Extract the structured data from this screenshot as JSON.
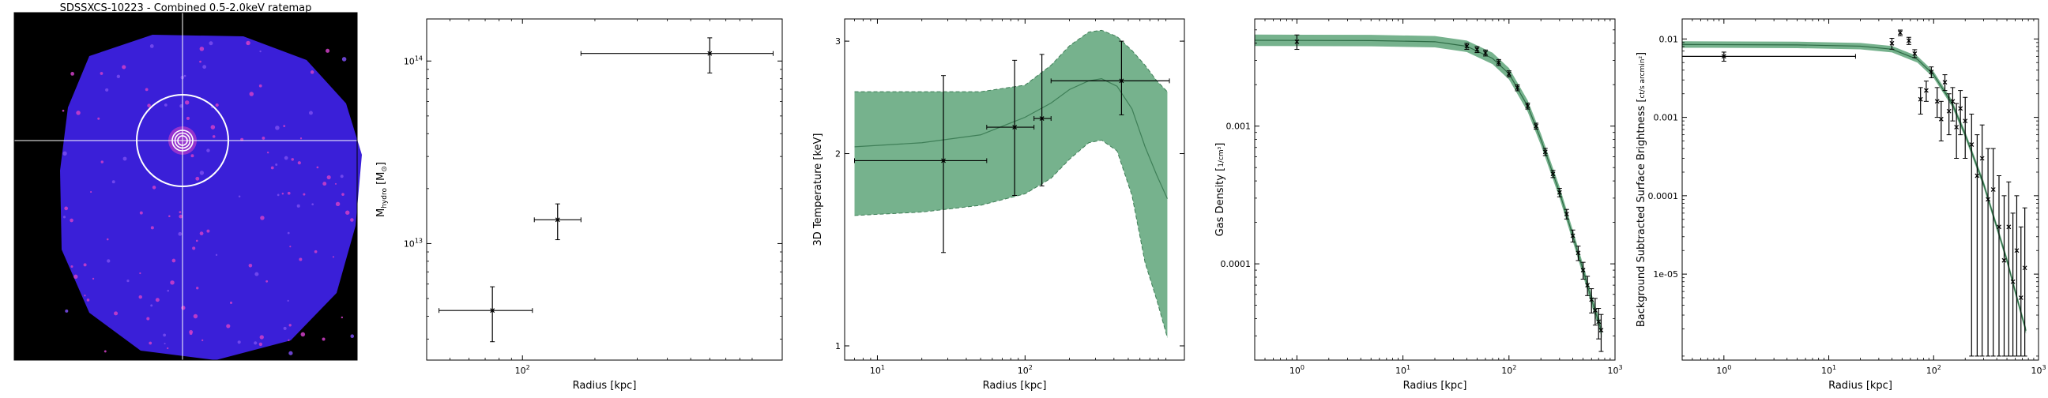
{
  "chart_data": [
    {
      "type": "image",
      "title": "SDSSXCS-10223 - Combined 0.5-2.0keV ratemap",
      "colors": {
        "background": "#000000",
        "source": "#3a1fd8",
        "bright": "#d040c8",
        "overlay": "#ffffff"
      }
    },
    {
      "type": "scatter",
      "xlabel": "Radius [kpc]",
      "ylabel": "M",
      "ylabel_sub": "hydro",
      "ylabel_unit": " [M",
      "ylabel_unit_sub": "⊙",
      "ylabel_end": "]",
      "xscale": "log",
      "yscale": "log",
      "xlim": [
        40,
        1200
      ],
      "ylim": [
        2300000000000.0,
        170000000000000.0
      ],
      "x_ticks": [
        {
          "v": 100,
          "base": "10",
          "exp": "2"
        }
      ],
      "y_ticks": [
        {
          "v": 10000000000000.0,
          "base": "10",
          "exp": "13"
        },
        {
          "v": 100000000000000.0,
          "base": "10",
          "exp": "14"
        }
      ],
      "points": [
        {
          "x": 75,
          "xlo": 45,
          "xhi": 110,
          "y": 4300000000000.0,
          "ylo": 2900000000000.0,
          "yhi": 5800000000000.0
        },
        {
          "x": 140,
          "xlo": 112,
          "xhi": 175,
          "y": 13500000000000.0,
          "ylo": 10500000000000.0,
          "yhi": 16500000000000.0
        },
        {
          "x": 600,
          "xlo": 175,
          "xhi": 1100,
          "y": 110000000000000.0,
          "ylo": 86000000000000.0,
          "yhi": 134000000000000.0
        }
      ]
    },
    {
      "type": "line",
      "xlabel": "Radius [kpc]",
      "ylabel": "3D Temperature [keV]",
      "xscale": "log",
      "yscale": "log",
      "xlim": [
        6,
        1200
      ],
      "ylim": [
        0.95,
        3.25
      ],
      "x_ticks": [
        {
          "v": 10,
          "base": "10",
          "exp": "1"
        },
        {
          "v": 100,
          "base": "10",
          "exp": "2"
        }
      ],
      "y_ticks": [
        {
          "v": 1,
          "label": "1"
        },
        {
          "v": 2,
          "label": "2"
        },
        {
          "v": 3,
          "label": "3"
        }
      ],
      "band_color": "#6fae87",
      "line_color": "#3f7f58",
      "model": [
        {
          "x": 7,
          "y": 2.05,
          "lo": 1.6,
          "hi": 2.5
        },
        {
          "x": 20,
          "y": 2.08,
          "lo": 1.62,
          "hi": 2.5
        },
        {
          "x": 50,
          "y": 2.14,
          "lo": 1.66,
          "hi": 2.5
        },
        {
          "x": 100,
          "y": 2.28,
          "lo": 1.73,
          "hi": 2.56
        },
        {
          "x": 150,
          "y": 2.4,
          "lo": 1.83,
          "hi": 2.75
        },
        {
          "x": 200,
          "y": 2.52,
          "lo": 1.96,
          "hi": 2.95
        },
        {
          "x": 270,
          "y": 2.6,
          "lo": 2.08,
          "hi": 3.1
        },
        {
          "x": 330,
          "y": 2.62,
          "lo": 2.1,
          "hi": 3.12
        },
        {
          "x": 420,
          "y": 2.55,
          "lo": 2.02,
          "hi": 3.05
        },
        {
          "x": 530,
          "y": 2.35,
          "lo": 1.72,
          "hi": 2.9
        },
        {
          "x": 650,
          "y": 2.05,
          "lo": 1.35,
          "hi": 2.75
        },
        {
          "x": 780,
          "y": 1.85,
          "lo": 1.18,
          "hi": 2.6
        },
        {
          "x": 920,
          "y": 1.7,
          "lo": 1.03,
          "hi": 2.5
        }
      ],
      "points": [
        {
          "x": 28,
          "xlo": 7,
          "xhi": 55,
          "y": 1.95,
          "ylo": 1.4,
          "yhi": 2.65
        },
        {
          "x": 85,
          "xlo": 55,
          "xhi": 115,
          "y": 2.2,
          "ylo": 1.72,
          "yhi": 2.8
        },
        {
          "x": 130,
          "xlo": 115,
          "xhi": 150,
          "y": 2.27,
          "ylo": 1.78,
          "yhi": 2.86
        },
        {
          "x": 450,
          "xlo": 150,
          "xhi": 950,
          "y": 2.6,
          "ylo": 2.3,
          "yhi": 3.0
        }
      ]
    },
    {
      "type": "line",
      "xlabel": "Radius [kpc]",
      "ylabel": "Gas Density",
      "ylabel_unit_num": "1",
      "ylabel_unit_den": "cm³",
      "xscale": "log",
      "yscale": "log",
      "xlim": [
        0.4,
        1000
      ],
      "ylim": [
        2e-05,
        0.006
      ],
      "x_ticks": [
        {
          "v": 1,
          "base": "10",
          "exp": "0"
        },
        {
          "v": 10,
          "base": "10",
          "exp": "1"
        },
        {
          "v": 100,
          "base": "10",
          "exp": "2"
        },
        {
          "v": 1000,
          "base": "10",
          "exp": "3"
        }
      ],
      "y_ticks": [
        {
          "v": 0.001,
          "label": "0.001"
        },
        {
          "v": 0.0001,
          "label": "0.0001"
        }
      ],
      "band_color": "#6fae87",
      "line_color": "#2e6b45",
      "model": [
        {
          "x": 0.4,
          "y": 0.0042
        },
        {
          "x": 5,
          "y": 0.00418
        },
        {
          "x": 20,
          "y": 0.0041
        },
        {
          "x": 40,
          "y": 0.0038
        },
        {
          "x": 70,
          "y": 0.0031
        },
        {
          "x": 100,
          "y": 0.0024
        },
        {
          "x": 150,
          "y": 0.0014
        },
        {
          "x": 200,
          "y": 0.0008
        },
        {
          "x": 300,
          "y": 0.00033
        },
        {
          "x": 400,
          "y": 0.00016
        },
        {
          "x": 500,
          "y": 9e-05
        },
        {
          "x": 600,
          "y": 5.5e-05
        },
        {
          "x": 700,
          "y": 3.8e-05
        },
        {
          "x": 750,
          "y": 3.2e-05
        }
      ],
      "points": [
        {
          "x": 1.0,
          "y": 0.0041,
          "yerr_frac": 0.12
        },
        {
          "x": 40,
          "y": 0.0038,
          "yerr_frac": 0.05
        },
        {
          "x": 50,
          "y": 0.0036,
          "yerr_frac": 0.05
        },
        {
          "x": 60,
          "y": 0.0034,
          "yerr_frac": 0.05
        },
        {
          "x": 80,
          "y": 0.0029,
          "yerr_frac": 0.05
        },
        {
          "x": 100,
          "y": 0.0024,
          "yerr_frac": 0.05
        },
        {
          "x": 120,
          "y": 0.0019,
          "yerr_frac": 0.05
        },
        {
          "x": 150,
          "y": 0.0014,
          "yerr_frac": 0.05
        },
        {
          "x": 180,
          "y": 0.001,
          "yerr_frac": 0.05
        },
        {
          "x": 220,
          "y": 0.00065,
          "yerr_frac": 0.06
        },
        {
          "x": 260,
          "y": 0.00045,
          "yerr_frac": 0.06
        },
        {
          "x": 300,
          "y": 0.00033,
          "yerr_frac": 0.07
        },
        {
          "x": 350,
          "y": 0.00023,
          "yerr_frac": 0.08
        },
        {
          "x": 400,
          "y": 0.00016,
          "yerr_frac": 0.1
        },
        {
          "x": 450,
          "y": 0.00012,
          "yerr_frac": 0.12
        },
        {
          "x": 500,
          "y": 9e-05,
          "yerr_frac": 0.14
        },
        {
          "x": 550,
          "y": 7e-05,
          "yerr_frac": 0.16
        },
        {
          "x": 600,
          "y": 5.5e-05,
          "yerr_frac": 0.2
        },
        {
          "x": 650,
          "y": 4.6e-05,
          "yerr_frac": 0.22
        },
        {
          "x": 700,
          "y": 3.8e-05,
          "yerr_frac": 0.25
        },
        {
          "x": 740,
          "y": 3.3e-05,
          "yerr_frac": 0.3
        }
      ]
    },
    {
      "type": "line",
      "xlabel": "Radius [kpc]",
      "ylabel": "Background Subtracted Surface Brightness",
      "ylabel_unit_num": "ct",
      "ylabel_unit_den": "s arcmin²",
      "xscale": "log",
      "yscale": "log",
      "xlim": [
        0.4,
        1000
      ],
      "ylim": [
        8e-07,
        0.018
      ],
      "x_ticks": [
        {
          "v": 1,
          "base": "10",
          "exp": "0"
        },
        {
          "v": 10,
          "base": "10",
          "exp": "1"
        },
        {
          "v": 100,
          "base": "10",
          "exp": "2"
        },
        {
          "v": 1000,
          "base": "10",
          "exp": "3"
        }
      ],
      "y_ticks": [
        {
          "v": 0.01,
          "label": "0.01"
        },
        {
          "v": 0.001,
          "label": "0.001"
        },
        {
          "v": 0.0001,
          "label": "0.0001"
        },
        {
          "v": 1e-05,
          "label": "1e-05"
        }
      ],
      "band_color": "#6fae87",
      "line_color": "#2e6b45",
      "model": [
        {
          "x": 0.4,
          "y": 0.0085
        },
        {
          "x": 5,
          "y": 0.0084
        },
        {
          "x": 20,
          "y": 0.0081
        },
        {
          "x": 40,
          "y": 0.0074
        },
        {
          "x": 70,
          "y": 0.0055
        },
        {
          "x": 100,
          "y": 0.0035
        },
        {
          "x": 150,
          "y": 0.0015
        },
        {
          "x": 200,
          "y": 0.0006
        },
        {
          "x": 300,
          "y": 0.00014
        },
        {
          "x": 400,
          "y": 4e-05
        },
        {
          "x": 500,
          "y": 1.5e-05
        },
        {
          "x": 600,
          "y": 6e-06
        },
        {
          "x": 700,
          "y": 2.8e-06
        },
        {
          "x": 760,
          "y": 1.9e-06
        }
      ],
      "points": [
        {
          "x": 1.0,
          "xlo": 0.4,
          "xhi": 18,
          "y": 0.006,
          "ylo": 0.0052,
          "yhi": 0.0068
        },
        {
          "x": 40,
          "y": 0.0088,
          "ylo": 0.0074,
          "yhi": 0.0102
        },
        {
          "x": 48,
          "y": 0.012,
          "ylo": 0.011,
          "yhi": 0.013
        },
        {
          "x": 58,
          "y": 0.0095,
          "ylo": 0.0085,
          "yhi": 0.0105
        },
        {
          "x": 66,
          "y": 0.0065,
          "ylo": 0.0058,
          "yhi": 0.0073
        },
        {
          "x": 75,
          "y": 0.0017,
          "ylo": 0.0011,
          "yhi": 0.0024
        },
        {
          "x": 85,
          "y": 0.0022,
          "ylo": 0.0016,
          "yhi": 0.0029
        },
        {
          "x": 95,
          "y": 0.0038,
          "ylo": 0.0032,
          "yhi": 0.0044
        },
        {
          "x": 108,
          "y": 0.0016,
          "ylo": 0.001,
          "yhi": 0.0024
        },
        {
          "x": 118,
          "y": 0.00095,
          "ylo": 0.0005,
          "yhi": 0.0016
        },
        {
          "x": 128,
          "y": 0.0028,
          "ylo": 0.0022,
          "yhi": 0.0035
        },
        {
          "x": 140,
          "y": 0.0012,
          "ylo": 0.0006,
          "yhi": 0.002
        },
        {
          "x": 152,
          "y": 0.0016,
          "ylo": 0.0009,
          "yhi": 0.0024
        },
        {
          "x": 165,
          "y": 0.00075,
          "ylo": 0.0003,
          "yhi": 0.0015
        },
        {
          "x": 180,
          "y": 0.0013,
          "ylo": 0.0006,
          "yhi": 0.0022
        },
        {
          "x": 200,
          "y": 0.0009,
          "ylo": 0.0003,
          "yhi": 0.0018
        },
        {
          "x": 230,
          "y": 0.00045,
          "ylo": 9e-07,
          "yhi": 0.0011
        },
        {
          "x": 260,
          "y": 0.00018,
          "ylo": 9e-07,
          "yhi": 0.0006
        },
        {
          "x": 290,
          "y": 0.0003,
          "ylo": 9e-07,
          "yhi": 0.0008
        },
        {
          "x": 330,
          "y": 9e-05,
          "ylo": 9e-07,
          "yhi": 0.0004
        },
        {
          "x": 370,
          "y": 0.00012,
          "ylo": 9e-07,
          "yhi": 0.0004
        },
        {
          "x": 420,
          "y": 4e-05,
          "ylo": 9e-07,
          "yhi": 0.00018
        },
        {
          "x": 470,
          "y": 1.5e-05,
          "ylo": 9e-07,
          "yhi": 0.0001
        },
        {
          "x": 520,
          "y": 4e-05,
          "ylo": 9e-07,
          "yhi": 0.00015
        },
        {
          "x": 570,
          "y": 8e-06,
          "ylo": 9e-07,
          "yhi": 6e-05
        },
        {
          "x": 620,
          "y": 2e-05,
          "ylo": 9e-07,
          "yhi": 0.0001
        },
        {
          "x": 680,
          "y": 5e-06,
          "ylo": 9e-07,
          "yhi": 4e-05
        },
        {
          "x": 740,
          "y": 1.2e-05,
          "ylo": 9e-07,
          "yhi": 7e-05
        }
      ]
    }
  ]
}
